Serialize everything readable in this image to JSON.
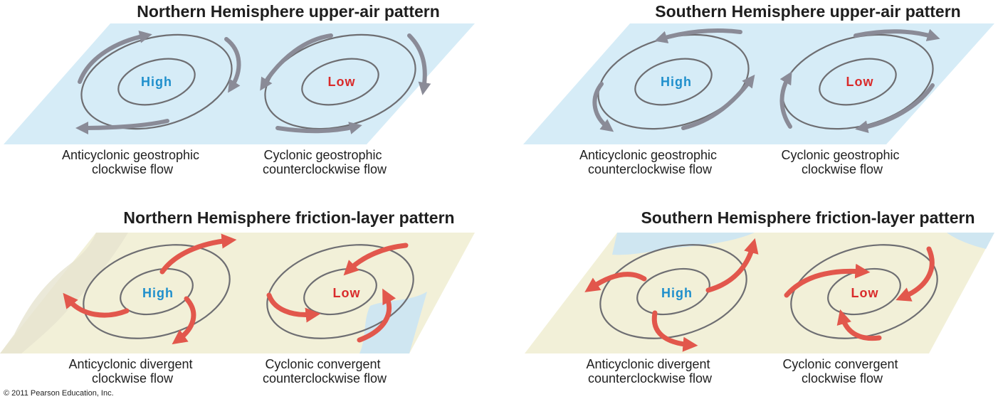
{
  "colors": {
    "high": "#1f8fcc",
    "low": "#d92b2b",
    "upper_plane": "#d6ecf7",
    "land": "#f2f0d8",
    "water": "#cfe6f1",
    "geostrophic_arrow": "#8a8b97",
    "friction_arrow": "#e2574c",
    "isobar": "#6e6e72"
  },
  "panels": {
    "nh_upper": {
      "title": "Northern Hemisphere upper-air pattern",
      "high_label": "High",
      "low_label": "Low",
      "high_caption": [
        "Anticyclonic geostrophic",
        "clockwise flow"
      ],
      "low_caption": [
        "Cyclonic geostrophic",
        "counterclockwise flow"
      ]
    },
    "sh_upper": {
      "title": "Southern Hemisphere upper-air pattern",
      "high_label": "High",
      "low_label": "Low",
      "high_caption": [
        "Anticyclonic geostrophic",
        "counterclockwise flow"
      ],
      "low_caption": [
        "Cyclonic geostrophic",
        "clockwise flow"
      ]
    },
    "nh_friction": {
      "title": "Northern Hemisphere friction-layer pattern",
      "high_label": "High",
      "low_label": "Low",
      "high_caption": [
        "Anticyclonic divergent",
        "clockwise flow"
      ],
      "low_caption": [
        "Cyclonic convergent",
        "counterclockwise flow"
      ]
    },
    "sh_friction": {
      "title": "Southern Hemisphere friction-layer pattern",
      "high_label": "High",
      "low_label": "Low",
      "high_caption": [
        "Anticyclonic divergent",
        "counterclockwise flow"
      ],
      "low_caption": [
        "Cyclonic convergent",
        "clockwise flow"
      ]
    }
  },
  "copyright": "© 2011 Pearson Education, Inc."
}
